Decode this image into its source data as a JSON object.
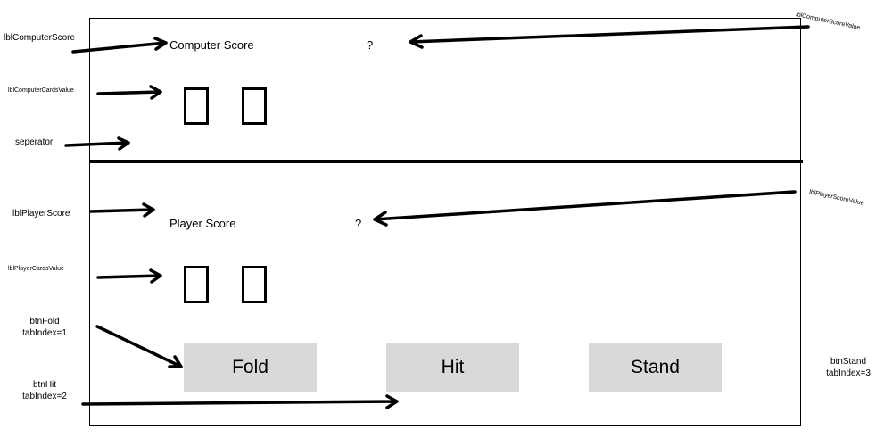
{
  "form": {
    "computer_score_label": "Computer Score",
    "computer_score_value": "?",
    "player_score_label": "Player Score",
    "player_score_value": "?",
    "buttons": {
      "fold": "Fold",
      "hit": "Hit",
      "stand": "Stand"
    }
  },
  "annotations": {
    "lbl_computer_score": "lblComputerScore",
    "lbl_computer_cards_value": "lblComputerCardsValue",
    "separator": "seperator",
    "lbl_player_score": "lblPlayerScore",
    "lbl_player_cards_value": "lblPlayerCardsValue",
    "btn_fold": "btnFold",
    "btn_fold_tab": "tabIndex=1",
    "btn_hit": "btnHit",
    "btn_hit_tab": "tabIndex=2",
    "btn_stand": "btnStand",
    "btn_stand_tab": "tabIndex=3",
    "lbl_computer_score_value": "lblComputerScoreValue",
    "lbl_player_score_value": "lblPlayerScoreValue"
  },
  "colors": {
    "button_fill": "#d9d9d9",
    "line": "#000000",
    "background": "#ffffff"
  }
}
